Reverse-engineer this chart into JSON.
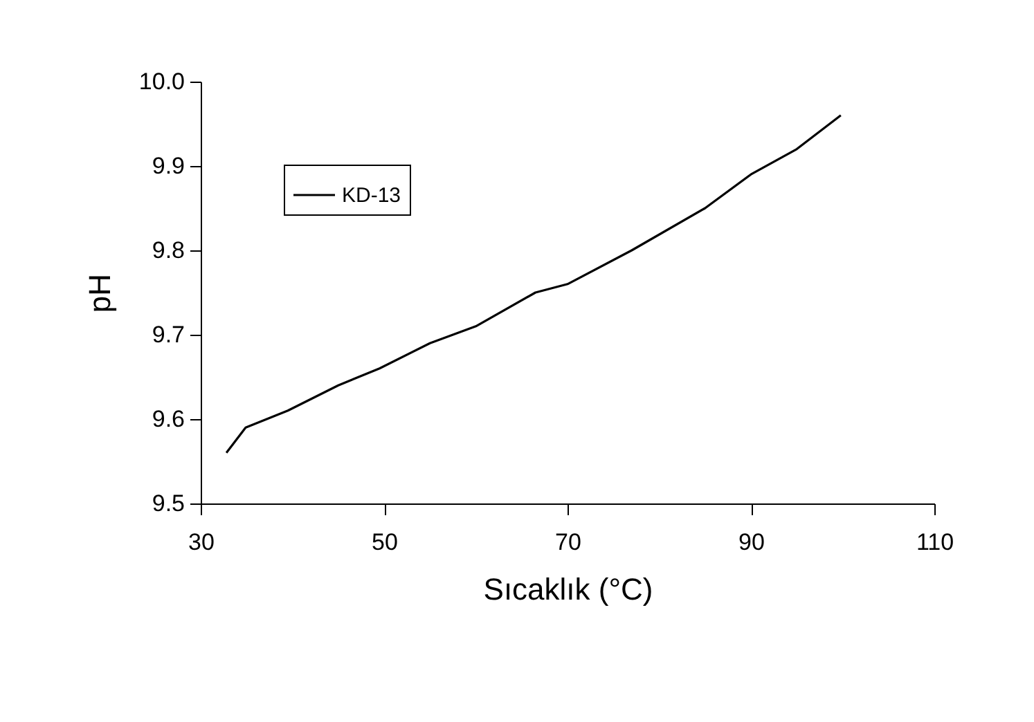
{
  "chart_data": {
    "type": "line",
    "xlabel": "Sıcaklık (°C)",
    "ylabel": "pH",
    "xlim": [
      30,
      110
    ],
    "xticks": [
      30,
      50,
      70,
      90,
      110
    ],
    "ylim": [
      9.5,
      10.0
    ],
    "yticks": [
      {
        "value": 9.5,
        "label": "9.5"
      },
      {
        "value": 9.6,
        "label": "9.6"
      },
      {
        "value": 9.7,
        "label": "9.7"
      },
      {
        "value": 9.8,
        "label": "9.8"
      },
      {
        "value": 9.9,
        "label": "9.9"
      },
      {
        "value": 10.0,
        "label": "10.0"
      }
    ],
    "grid": false,
    "legend": "top left",
    "marker": "none",
    "line_style": "solid",
    "series": [
      {
        "name": "KD-13",
        "color": "#000000",
        "x": [
          32.8,
          34.9,
          39.5,
          45,
          49.5,
          55,
          60,
          66.5,
          70,
          77,
          85,
          90,
          95,
          99.8
        ],
        "values": [
          9.56,
          9.59,
          9.61,
          9.64,
          9.66,
          9.69,
          9.71,
          9.75,
          9.76,
          9.8,
          9.85,
          9.89,
          9.92,
          9.96
        ]
      }
    ]
  }
}
